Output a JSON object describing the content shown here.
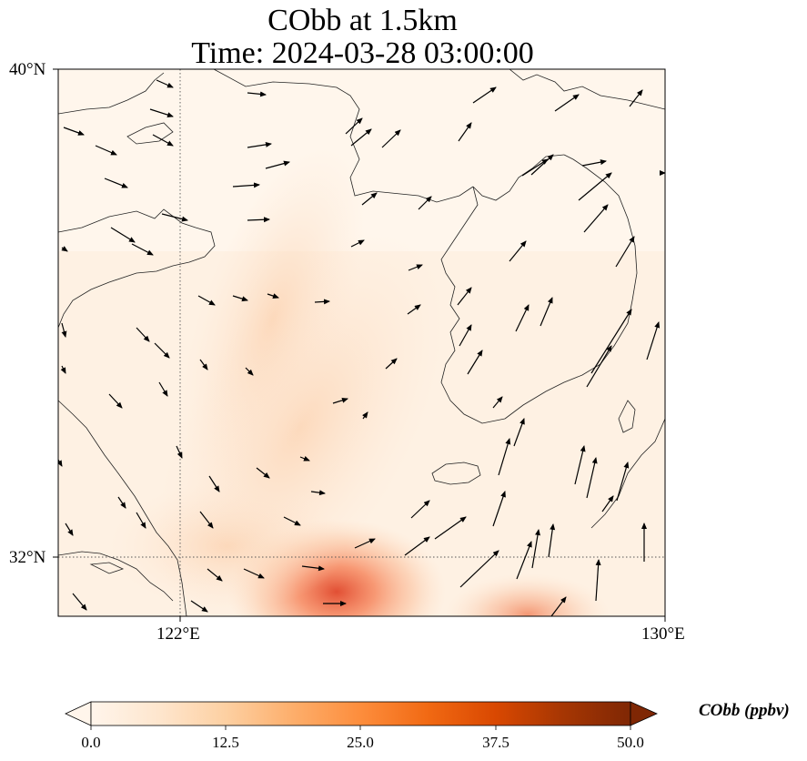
{
  "title": {
    "line1": "CObb at 1.5km",
    "line2": "Time: 2024-03-28 03:00:00"
  },
  "map": {
    "lat_ticks": [
      "40°N",
      "32°N"
    ],
    "lon_ticks": [
      "122°E",
      "130°E"
    ],
    "extent_lon": [
      120,
      130
    ],
    "extent_lat": [
      31,
      40
    ],
    "gridlines": "dotted",
    "field": "CObb",
    "plume_peak_ppbv": 40
  },
  "colorbar": {
    "label": "CObb (ppbv)",
    "ticks": [
      "0.0",
      "12.5",
      "25.0",
      "37.5",
      "50.0"
    ],
    "min": 0,
    "max": 50,
    "extend": "both",
    "colors": [
      "#fff5eb",
      "#fee6ce",
      "#fdd0a2",
      "#fdae6b",
      "#fd8d3c",
      "#f16913",
      "#d94801",
      "#a63603",
      "#7f2704"
    ]
  }
}
